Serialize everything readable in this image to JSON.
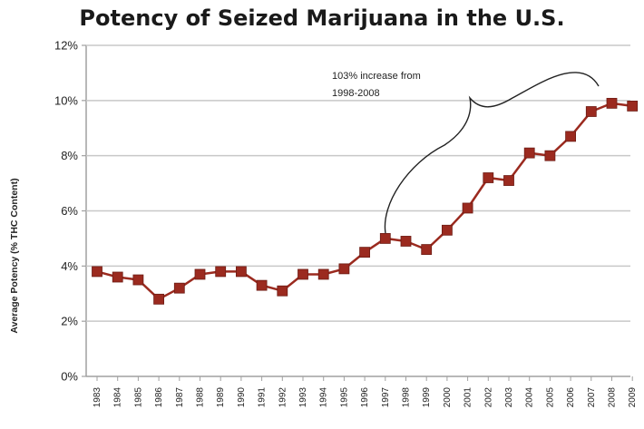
{
  "chart_data": {
    "type": "line",
    "title": "Potency of Seized Marijuana in the U.S.",
    "xlabel": "",
    "ylabel": "Average Potency (% THC Content)",
    "ylim": [
      0,
      12
    ],
    "yticks": [
      "0%",
      "2%",
      "4%",
      "6%",
      "8%",
      "10%",
      "12%"
    ],
    "ytick_values": [
      0,
      2,
      4,
      6,
      8,
      10,
      12
    ],
    "categories": [
      "1983",
      "1984",
      "1985",
      "1986",
      "1987",
      "1988",
      "1989",
      "1990",
      "1991",
      "1992",
      "1993",
      "1994",
      "1995",
      "1996",
      "1997",
      "1998",
      "1999",
      "2000",
      "2001",
      "2002",
      "2003",
      "2004",
      "2005",
      "2006",
      "2007",
      "2008",
      "2009"
    ],
    "series": [
      {
        "values": [
          3.8,
          3.6,
          3.5,
          2.8,
          3.2,
          3.7,
          3.8,
          3.8,
          3.3,
          3.1,
          3.7,
          3.7,
          3.9,
          4.5,
          5.0,
          4.9,
          4.6,
          5.3,
          6.1,
          7.2,
          7.1,
          8.1,
          8.0,
          8.7,
          9.6,
          9.9,
          9.8
        ],
        "color": "#9b2a1f"
      }
    ],
    "annotation": {
      "lines": [
        "103% increase from",
        "1998-2008"
      ]
    },
    "grid": true,
    "gridline_color": "#c8c8c8",
    "axis_color": "#a0a0a0",
    "marker": "square"
  }
}
